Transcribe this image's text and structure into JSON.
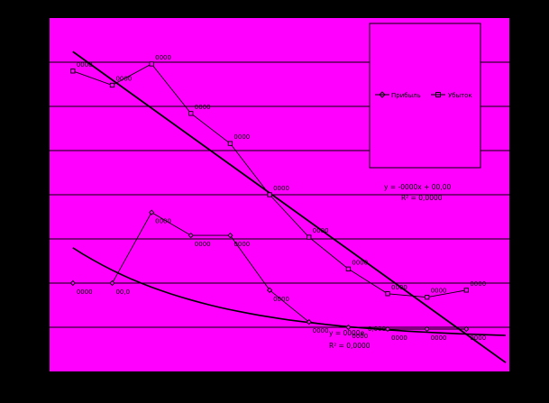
{
  "chart_data": {
    "type": "line",
    "title": "",
    "xlabel": "",
    "ylabel": "",
    "grid": true,
    "legend_position": "right",
    "colors": {
      "background": "#000000",
      "plot": "#ff00ff",
      "lines": "#000000"
    },
    "x": [
      1,
      2,
      3,
      4,
      5,
      6,
      7,
      8,
      9,
      10,
      11
    ],
    "series": [
      {
        "name": "Прибыль",
        "marker": "diamond",
        "values": [
          0.0,
          0.0,
          4.0,
          2.7,
          2.7,
          -0.4,
          -2.2,
          -2.5,
          -2.6,
          -2.6,
          -2.6
        ],
        "labels": [
          "0000",
          "00,0",
          "0000",
          "0000",
          "0000",
          "0000",
          "0000",
          "0000",
          "0000",
          "0000",
          "0000"
        ]
      },
      {
        "name": "Убыток",
        "marker": "square",
        "values": [
          12.0,
          11.2,
          12.4,
          9.6,
          7.9,
          5.0,
          2.6,
          0.8,
          -0.6,
          -0.8,
          -0.4
        ],
        "labels": [
          "0000",
          "0000",
          "0000",
          "0000",
          "0000",
          "0000",
          "0000",
          "0000",
          "0000",
          "0000",
          "0000"
        ]
      }
    ],
    "trendlines": [
      {
        "series": "Убыток",
        "kind": "linear",
        "from": [
          1,
          13.1
        ],
        "to": [
          12,
          -4.5
        ],
        "equation": "y = -0000x + 00,00",
        "r2": "R² = 0,0000"
      },
      {
        "series": "Прибыль",
        "kind": "exponential",
        "equation": "y = 0000e",
        "exponent": "0,000",
        "r2": "R² = 0,0000"
      }
    ],
    "ylim": [
      -5,
      15
    ],
    "xlim": [
      0.5,
      12
    ]
  }
}
